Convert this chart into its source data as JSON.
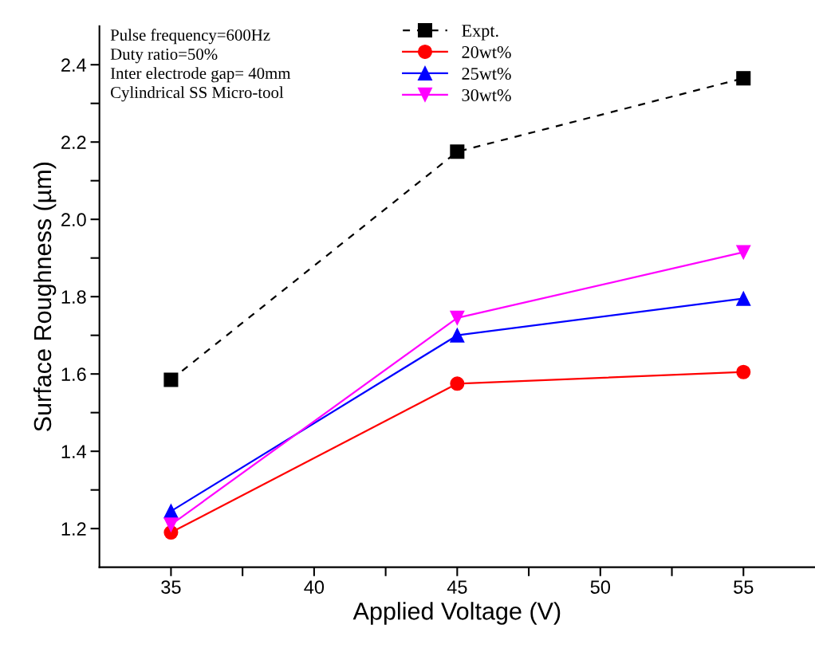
{
  "chart_data": {
    "type": "line",
    "xlabel": "Applied Voltage (V)",
    "ylabel": "Surface Roughness (µm)",
    "x": [
      35,
      45,
      55
    ],
    "series": [
      {
        "name": "Expt.",
        "color": "#000000",
        "marker": "square",
        "line_style": "dashed",
        "values": [
          1.585,
          2.175,
          2.365
        ]
      },
      {
        "name": "20wt%",
        "color": "#ff0000",
        "marker": "circle",
        "line_style": "solid",
        "values": [
          1.19,
          1.575,
          1.605
        ]
      },
      {
        "name": "25wt%",
        "color": "#0000ff",
        "marker": "triangle",
        "line_style": "solid",
        "values": [
          1.245,
          1.7,
          1.795
        ]
      },
      {
        "name": "30wt%",
        "color": "#ff00ff",
        "marker": "triangle_down",
        "line_style": "solid",
        "values": [
          1.21,
          1.745,
          1.915
        ]
      }
    ],
    "xlim": [
      32.5,
      57.5
    ],
    "xticks": [
      35,
      {
        "value": 37.5,
        "label": null
      },
      40,
      {
        "value": 42.5,
        "label": null
      },
      45,
      {
        "value": 47.5,
        "label": null
      },
      50,
      {
        "value": 52.5,
        "label": null
      },
      55
    ],
    "ylim": [
      1.1,
      2.5
    ],
    "yticks": [
      {
        "value": 1.2,
        "label": "1.2"
      },
      {
        "value": 1.3,
        "label": null
      },
      {
        "value": 1.4,
        "label": "1.4"
      },
      {
        "value": 1.5,
        "label": null
      },
      {
        "value": 1.6,
        "label": "1.6"
      },
      {
        "value": 1.7,
        "label": null
      },
      {
        "value": 1.8,
        "label": "1.8"
      },
      {
        "value": 1.9,
        "label": null
      },
      {
        "value": 2.0,
        "label": "2.0"
      },
      {
        "value": 2.1,
        "label": null
      },
      {
        "value": 2.2,
        "label": "2.2"
      },
      {
        "value": 2.3,
        "label": null
      },
      {
        "value": 2.4,
        "label": "2.4"
      }
    ],
    "annotations": [
      "Pulse frequency=600Hz",
      "Duty ratio=50%",
      "Inter electrode gap= 40mm",
      "Cylindrical SS Micro-tool"
    ],
    "legend": "top",
    "grid": false
  }
}
